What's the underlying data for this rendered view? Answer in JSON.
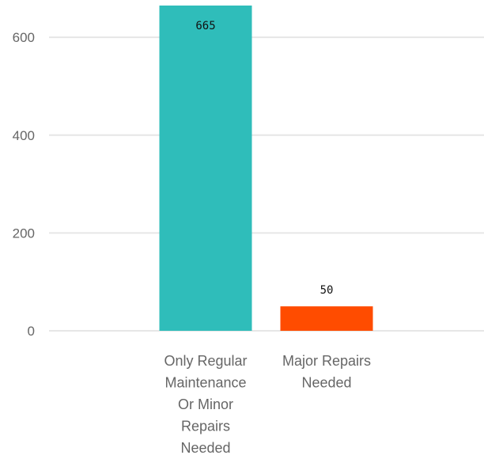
{
  "chart_data": {
    "type": "bar",
    "categories": [
      [
        "Only Regular",
        "Maintenance",
        "Or Minor",
        "Repairs",
        "Needed"
      ],
      [
        "Major Repairs",
        "Needed"
      ]
    ],
    "values": [
      665,
      50
    ],
    "data_labels": [
      "665",
      "50"
    ],
    "colors": [
      "#2fbdba",
      "#ff4c00"
    ],
    "title": "",
    "xlabel": "",
    "ylabel": "",
    "ylim": [
      0,
      665
    ],
    "yticks": [
      0,
      200,
      400,
      600
    ],
    "ytick_labels": [
      "0",
      "200",
      "400",
      "600"
    ],
    "grid": true,
    "legend": "none"
  }
}
